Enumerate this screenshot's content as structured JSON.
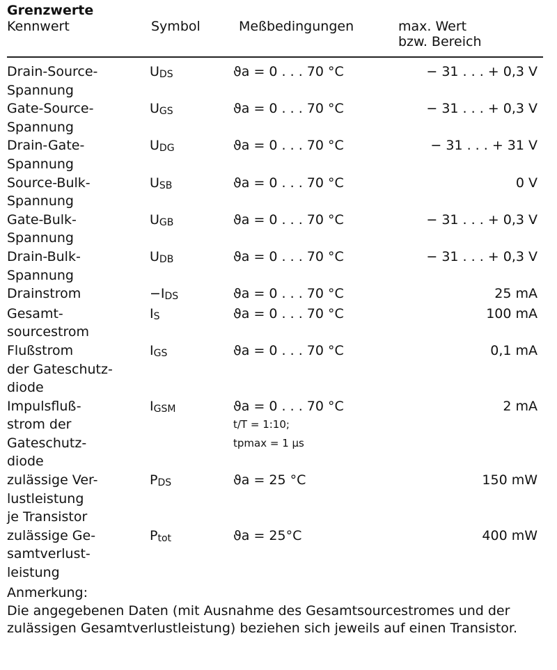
{
  "title": "Grenzwerte",
  "headers": {
    "kennwert": "Kennwert",
    "symbol": "Symbol",
    "bedingungen": "Meßbedingungen",
    "wert1": "max. Wert",
    "wert2": "bzw. Bereich"
  },
  "rows": [
    {
      "kennwert": [
        "Drain-Source-",
        "Spannung"
      ],
      "sym": "U",
      "sub": "DS",
      "cond": [
        "ϑa = 0 . . . 70 °C"
      ],
      "value": "− 31 . . . + 0,3 V"
    },
    {
      "kennwert": [
        "Gate-Source-",
        "Spannung"
      ],
      "sym": "U",
      "sub": "GS",
      "cond": [
        "ϑa = 0 . . . 70 °C"
      ],
      "value": "− 31 . . . + 0,3 V"
    },
    {
      "kennwert": [
        "Drain-Gate-",
        "Spannung"
      ],
      "sym": "U",
      "sub": "DG",
      "cond": [
        "ϑa = 0 . . . 70 °C"
      ],
      "value": "− 31 . . . + 31 V"
    },
    {
      "kennwert": [
        "Source-Bulk-",
        "Spannung"
      ],
      "sym": "U",
      "sub": "SB",
      "cond": [
        "ϑa = 0 . . . 70 °C"
      ],
      "value": "0 V"
    },
    {
      "kennwert": [
        "Gate-Bulk-",
        "Spannung"
      ],
      "sym": "U",
      "sub": "GB",
      "cond": [
        "ϑa = 0 . . . 70 °C"
      ],
      "value": "− 31 . . . + 0,3 V"
    },
    {
      "kennwert": [
        "Drain-Bulk-",
        "Spannung"
      ],
      "sym": "U",
      "sub": "DB",
      "cond": [
        "ϑa = 0 . . . 70 °C"
      ],
      "value": "− 31 . . . + 0,3 V"
    },
    {
      "kennwert": [
        "Drainstrom"
      ],
      "sym": "−I",
      "sub": "DS",
      "cond": [
        "ϑa = 0 . . . 70 °C"
      ],
      "value": "25 mA"
    },
    {
      "kennwert": [
        "Gesamt-",
        "sourcestrom"
      ],
      "sym": "I",
      "sub": "S",
      "cond": [
        "ϑa = 0 . . . 70 °C"
      ],
      "value": "100 mA"
    },
    {
      "kennwert": [
        "Flußstrom",
        "der Gateschutz-",
        "diode"
      ],
      "sym": "I",
      "sub": "GS",
      "cond": [
        "ϑa = 0 . . . 70 °C"
      ],
      "value": "0,1 mA"
    },
    {
      "kennwert": [
        "Impulsfluß-",
        "strom der",
        "Gateschutz-",
        "diode"
      ],
      "sym": "I",
      "sub": "GSM",
      "cond": [
        "ϑa = 0 . . . 70 °C",
        "t/T = 1:10;",
        "tpmax = 1 µs"
      ],
      "value": "2 mA"
    },
    {
      "kennwert": [
        "zulässige Ver-",
        "lustleistung",
        "je Transistor"
      ],
      "sym": "P",
      "sub": "DS",
      "cond": [
        "ϑa = 25 °C"
      ],
      "value": "150 mW"
    },
    {
      "kennwert": [
        "zulässige Ge-",
        "samtverlust-",
        "leistung"
      ],
      "sym": "P",
      "sub": "tot",
      "cond": [
        "ϑa = 25°C"
      ],
      "value": "400 mW"
    }
  ],
  "note": {
    "heading": "Anmerkung:",
    "text": "Die angegebenen Daten (mit Ausnahme des Gesamtsourcestromes und der zulässigen Gesamtverlustleistung) beziehen sich jeweils auf einen Transistor."
  }
}
